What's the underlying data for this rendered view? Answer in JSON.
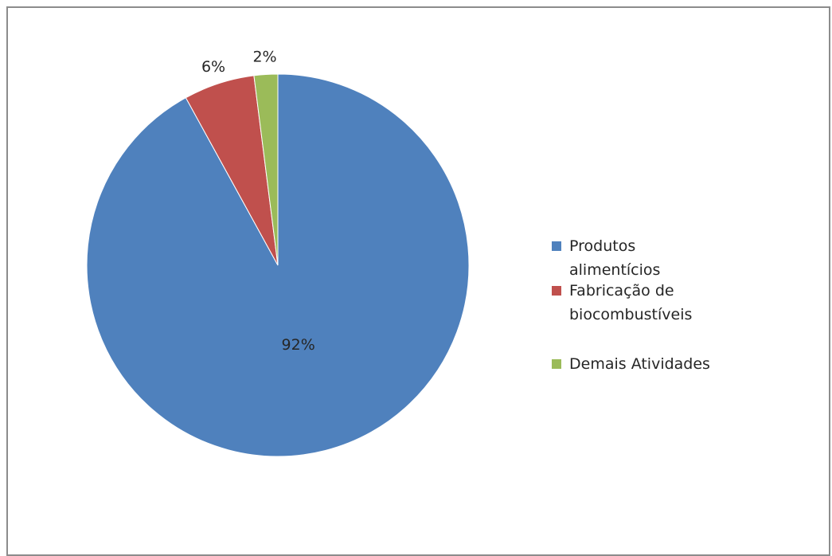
{
  "chart_data": {
    "type": "pie",
    "title": "",
    "categories": [
      "Produtos alimentícios",
      "Fabricação de biocombustíveis",
      "Demais Atividades"
    ],
    "values": [
      92,
      6,
      2
    ],
    "labels": [
      "92%",
      "6%",
      "2%"
    ],
    "colors": [
      "#4f81bd",
      "#c0504d",
      "#9bbb59"
    ],
    "legend": {
      "placement": "right",
      "entries": [
        "Produtos alimentícios",
        "Fabricação de biocombustíveis",
        "Demais Atividades"
      ]
    }
  }
}
